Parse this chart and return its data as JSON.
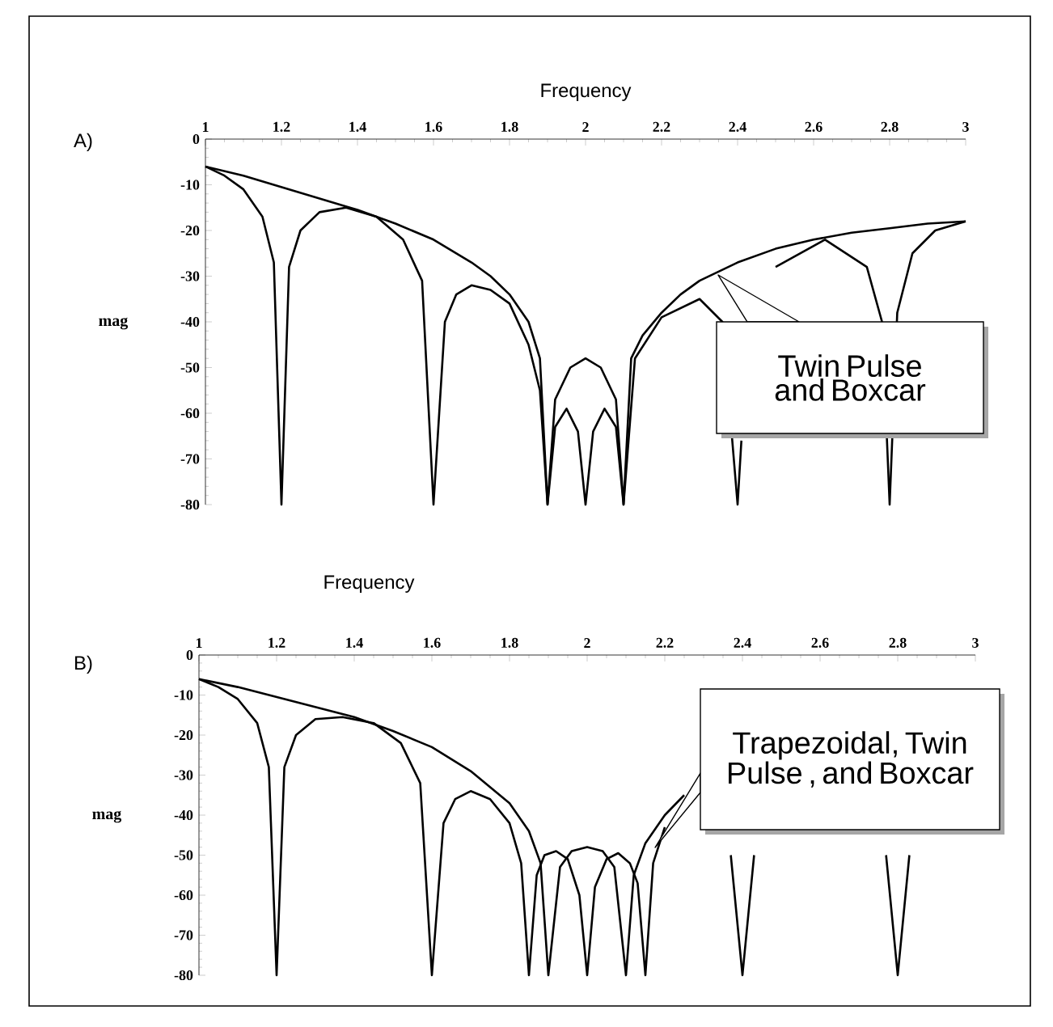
{
  "chart_data": [
    {
      "type": "line",
      "title": "A)",
      "xlabel": "Frequency",
      "ylabel": "mag",
      "xlim": [
        1,
        3
      ],
      "ylim": [
        -80,
        0
      ],
      "xticks": [
        1,
        1.2,
        1.4,
        1.6,
        1.8,
        2,
        2.2,
        2.4,
        2.6,
        2.8,
        3
      ],
      "yticks": [
        0,
        -10,
        -20,
        -30,
        -40,
        -50,
        -60,
        -70,
        -80
      ],
      "marker": "none",
      "series": [
        {
          "color": "#000000",
          "x": [
            1,
            1.1,
            1.2,
            1.3,
            1.4,
            1.5,
            1.6,
            1.7,
            1.75,
            1.8,
            1.85,
            1.88,
            1.9,
            1.92,
            1.96,
            2,
            2.04,
            2.08,
            2.1,
            2.12,
            2.15,
            2.2,
            2.25,
            2.3,
            2.4,
            2.5,
            2.6,
            2.7,
            2.8,
            2.9,
            3
          ],
          "values": [
            -6,
            -8,
            -10.5,
            -13,
            -15.5,
            -18.5,
            -22,
            -27,
            -30,
            -34,
            -40,
            -48,
            -80,
            -57,
            -50,
            -48,
            -50,
            -57,
            -80,
            -48,
            -43,
            -38,
            -34,
            -31,
            -27,
            -24,
            -22,
            -20.5,
            -19.5,
            -18.5,
            -18
          ]
        },
        {
          "color": "#000000",
          "x": [
            1,
            1.05,
            1.1,
            1.15,
            1.18,
            1.2,
            1.22,
            1.25,
            1.3,
            1.37,
            1.45,
            1.52,
            1.57,
            1.6,
            1.63,
            1.66,
            1.7,
            1.75,
            1.8,
            1.85,
            1.88,
            1.9,
            1.92,
            1.95,
            1.98,
            2,
            2.02,
            2.05,
            2.08,
            2.1,
            2.13,
            2.2,
            2.3,
            2.36,
            2.4,
            2.41,
            2.45,
            2.5,
            2.63,
            2.74,
            2.78,
            2.8,
            2.82,
            2.86,
            2.92,
            3
          ],
          "values": [
            -6,
            -8,
            -11,
            -17,
            -27,
            -80,
            -28,
            -20,
            -16,
            -15,
            -17,
            -22,
            -31,
            -80,
            -40,
            -34,
            -32,
            -33,
            -36,
            -45,
            -55,
            -80,
            -63,
            -59,
            -64,
            -80,
            -64,
            -59,
            -63,
            -80,
            -48,
            -39,
            -35,
            -40,
            -80,
            -66,
            null,
            -28,
            -22,
            -28,
            -40,
            -80,
            -38,
            -25,
            -20,
            -18
          ]
        }
      ],
      "annotations": [
        "Twin Pulse and Boxcar"
      ],
      "legend": false,
      "grid": false
    },
    {
      "type": "line",
      "title": "B)",
      "xlabel": "Frequency",
      "ylabel": "mag",
      "xlim": [
        1,
        3
      ],
      "ylim": [
        -80,
        0
      ],
      "xticks": [
        1,
        1.2,
        1.4,
        1.6,
        1.8,
        2,
        2.2,
        2.4,
        2.6,
        2.8,
        3
      ],
      "yticks": [
        0,
        -10,
        -20,
        -30,
        -40,
        -50,
        -60,
        -70,
        -80
      ],
      "marker": "none",
      "series": [
        {
          "color": "#000000",
          "x": [
            1,
            1.1,
            1.2,
            1.3,
            1.4,
            1.5,
            1.6,
            1.7,
            1.8,
            1.85,
            1.88,
            1.9,
            1.93,
            1.96,
            2,
            2.04,
            2.07,
            2.1,
            2.12,
            2.15,
            2.2,
            2.25
          ],
          "values": [
            -6,
            -8,
            -10.5,
            -13,
            -15.5,
            -19,
            -23,
            -29,
            -37,
            -44,
            -52,
            -80,
            -53,
            -49,
            -48,
            -49,
            -53,
            -80,
            -55,
            -47,
            -40,
            -35
          ]
        },
        {
          "color": "#000000",
          "x": [
            1,
            1.05,
            1.1,
            1.15,
            1.18,
            1.2,
            1.22,
            1.25,
            1.3,
            1.37,
            1.45,
            1.52,
            1.57,
            1.6,
            1.63,
            1.66,
            1.7,
            1.75,
            1.8,
            1.83,
            1.85,
            1.87,
            1.89,
            1.92,
            1.95,
            1.98,
            2,
            2.02,
            2.05,
            2.08,
            2.11,
            2.13,
            2.15,
            2.17,
            2.2,
            2.25,
            2.3,
            2.33,
            2.37,
            2.4,
            2.43,
            2.6,
            2.77,
            2.8,
            2.83
          ],
          "values": [
            -6,
            -8,
            -11,
            -17,
            -28,
            -80,
            -28,
            -20,
            -16,
            -15.5,
            -17,
            -22,
            -32,
            -80,
            -42,
            -36,
            -34,
            -36,
            -42,
            -52,
            -80,
            -55,
            -50,
            -49,
            -51,
            -60,
            -80,
            -58,
            -51,
            -49.5,
            -52,
            -57,
            -80,
            -52,
            -43,
            null,
            null,
            null,
            -50,
            -80,
            -50,
            null,
            -50,
            -80,
            -50
          ]
        }
      ],
      "annotations": [
        "Trapezoidal, Twin Pulse , and Boxcar"
      ],
      "legend": false,
      "grid": false
    }
  ]
}
